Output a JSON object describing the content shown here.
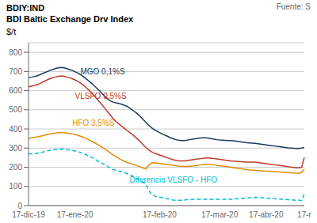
{
  "chart_data": {
    "type": "line",
    "title": "BDIY:IND",
    "subtitle": "BDI Baltic Exchange Drv Index",
    "y_label": "$/t",
    "categories": [
      "17-dic-19",
      null,
      null,
      null,
      null,
      null,
      null,
      null,
      null,
      null,
      null,
      null,
      null,
      null,
      null,
      null,
      null,
      "17-ene-20",
      null,
      null,
      null,
      null,
      null,
      null,
      null,
      null,
      null,
      null,
      null,
      null,
      null,
      null,
      null,
      null,
      null,
      null,
      null,
      null,
      null,
      null,
      null,
      null,
      null,
      null,
      null,
      null,
      null,
      null,
      "17-feb-20",
      null,
      null,
      null,
      null,
      null,
      null,
      null,
      null,
      null,
      null,
      null,
      null,
      null,
      null,
      null,
      null,
      null,
      null,
      null,
      null,
      null,
      "17-mar-20",
      null,
      null,
      null,
      null,
      null,
      null,
      null,
      null,
      null,
      null,
      null,
      null,
      null,
      null,
      null,
      null,
      "17-abr-20",
      null,
      null,
      null,
      null,
      null,
      null,
      null,
      null,
      null,
      null,
      null,
      null,
      null,
      "17-r"
    ],
    "series": [
      {
        "name": "MGO 0,1%S",
        "color": "#1a3a5c",
        "line_style": "solid",
        "values": [
          668,
          670,
          673,
          677,
          682,
          688,
          694,
          700,
          706,
          711,
          716,
          719,
          721,
          719,
          715,
          710,
          705,
          699,
          692,
          684,
          674,
          663,
          651,
          639,
          626,
          613,
          599,
          584,
          569,
          556,
          546,
          540,
          536,
          533,
          529,
          524,
          519,
          509,
          499,
          489,
          477,
          464,
          449,
          434,
          420,
          407,
          397,
          389,
          381,
          374,
          367,
          361,
          354,
          349,
          344,
          341,
          339,
          339,
          341,
          344,
          347,
          349,
          351,
          353,
          354,
          354,
          352,
          349,
          347,
          344,
          342,
          341,
          340,
          339,
          339,
          338,
          336,
          334,
          332,
          330,
          328,
          327,
          326,
          325,
          323,
          321,
          319,
          317,
          315,
          313,
          311,
          309,
          307,
          305,
          303,
          301,
          300,
          299,
          298,
          298,
          300,
          303
        ]
      },
      {
        "name": "VLSFO 0,5%S",
        "color": "#c0392b",
        "line_style": "solid",
        "values": [
          620,
          623,
          626,
          630,
          636,
          643,
          650,
          657,
          663,
          668,
          672,
          675,
          677,
          675,
          671,
          667,
          662,
          656,
          648,
          640,
          629,
          617,
          604,
          589,
          574,
          557,
          541,
          524,
          507,
          489,
          471,
          454,
          439,
          427,
          415,
          404,
          393,
          382,
          371,
          359,
          346,
          332,
          317,
          302,
          291,
          281,
          274,
          269,
          264,
          259,
          254,
          249,
          244,
          239,
          236,
          234,
          233,
          233,
          235,
          237,
          239,
          241,
          243,
          245,
          247,
          249,
          249,
          247,
          245,
          243,
          241,
          239,
          237,
          235,
          233,
          232,
          231,
          230,
          229,
          228,
          227,
          227,
          227,
          227,
          225,
          223,
          221,
          219,
          217,
          215,
          213,
          211,
          209,
          207,
          205,
          203,
          201,
          199,
          197,
          197,
          199,
          251
        ]
      },
      {
        "name": "HFO 3,5%S",
        "color": "#e08c00",
        "line_style": "solid",
        "values": [
          350,
          353,
          356,
          358,
          361,
          364,
          368,
          371,
          374,
          377,
          379,
          381,
          382,
          381,
          379,
          377,
          374,
          371,
          367,
          362,
          357,
          351,
          344,
          337,
          329,
          321,
          313,
          304,
          295,
          285,
          275,
          265,
          255,
          247,
          239,
          232,
          226,
          221,
          216,
          212,
          207,
          202,
          196,
          191,
          210,
          222,
          224,
          222,
          220,
          218,
          216,
          214,
          212,
          210,
          208,
          206,
          205,
          204,
          204,
          205,
          206,
          208,
          210,
          212,
          214,
          216,
          216,
          214,
          212,
          210,
          208,
          206,
          204,
          202,
          200,
          198,
          196,
          194,
          192,
          190,
          188,
          186,
          185,
          184,
          183,
          182,
          181,
          180,
          179,
          178,
          177,
          176,
          175,
          174,
          173,
          172,
          171,
          170,
          169,
          168,
          173,
          190
        ]
      },
      {
        "name": "Diferencia VLSFO - HFO",
        "color": "#00bcd4",
        "line_style": "dashed",
        "values": [
          270,
          270,
          270,
          272,
          275,
          279,
          282,
          286,
          289,
          291,
          293,
          294,
          295,
          294,
          292,
          290,
          288,
          285,
          281,
          278,
          272,
          266,
          260,
          252,
          245,
          236,
          228,
          220,
          212,
          204,
          196,
          189,
          184,
          180,
          176,
          172,
          167,
          161,
          155,
          147,
          139,
          130,
          121,
          111,
          81,
          59,
          50,
          47,
          44,
          41,
          38,
          35,
          32,
          29,
          28,
          28,
          28,
          29,
          31,
          32,
          33,
          33,
          33,
          33,
          33,
          33,
          33,
          33,
          33,
          33,
          33,
          33,
          33,
          33,
          33,
          34,
          35,
          36,
          37,
          38,
          39,
          41,
          42,
          43,
          42,
          41,
          40,
          39,
          38,
          37,
          36,
          35,
          34,
          33,
          32,
          31,
          30,
          29,
          28,
          29,
          26,
          61
        ]
      }
    ],
    "annotations": [
      {
        "text": "MGO 0,1%S",
        "x": 19,
        "y": 685,
        "color": "#1a3a5c"
      },
      {
        "text": "VLSFO 0,5%S",
        "x": 17,
        "y": 555,
        "color": "#c0392b"
      },
      {
        "text": "HFO 3,5%S",
        "x": 16,
        "y": 415,
        "color": "#e08c00"
      },
      {
        "text": "Diferencia VLSFO - HFO",
        "x": 37,
        "y": 118,
        "color": "#00bcd4"
      },
      {
        "text": "Fuente: S"
      }
    ],
    "ylim": [
      0,
      850
    ],
    "yticks": [
      0,
      100,
      200,
      300,
      400,
      500,
      600,
      700,
      800
    ],
    "grid": true
  }
}
